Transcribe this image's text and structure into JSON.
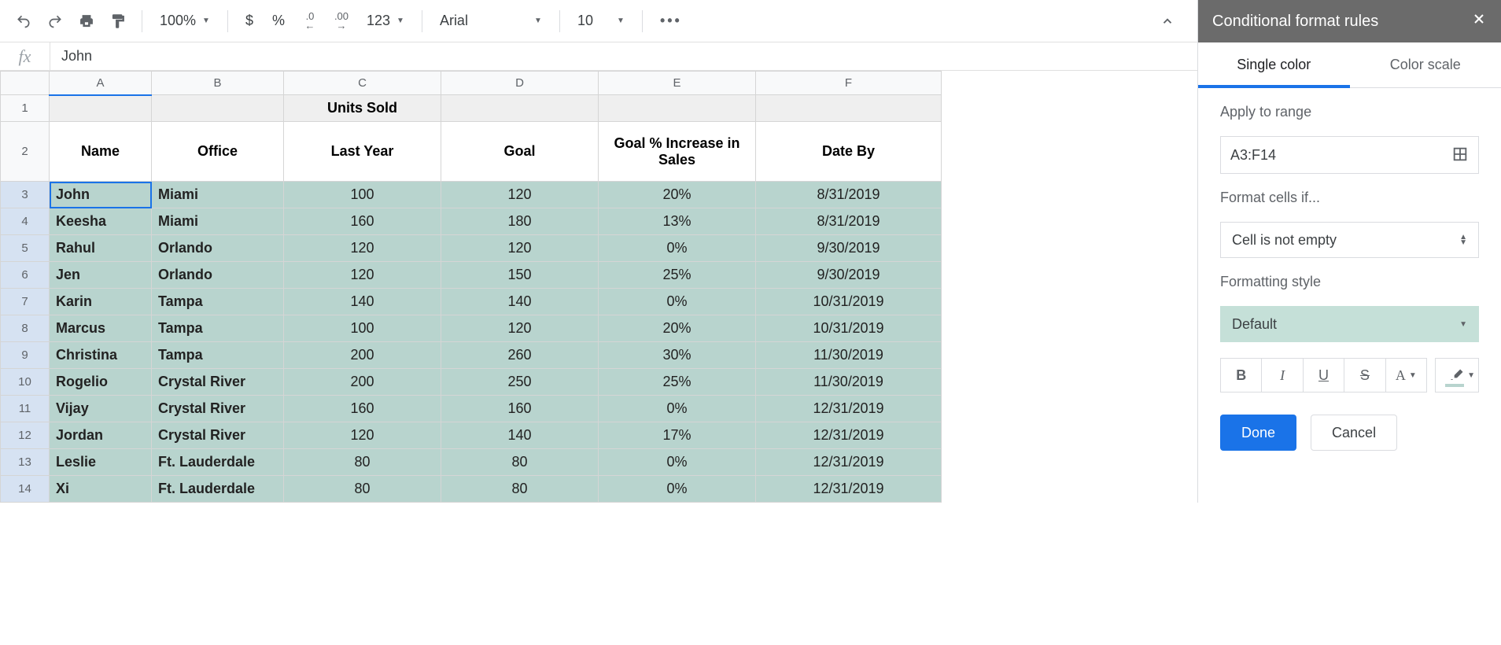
{
  "toolbar": {
    "zoom": "100%",
    "currency": "$",
    "percent": "%",
    "dec_less": ".0",
    "dec_more": ".00",
    "numfmt": "123",
    "font": "Arial",
    "fontsize": "10",
    "more": "•••"
  },
  "formula_bar": {
    "fx": "fx",
    "value": "John"
  },
  "columns": [
    "A",
    "B",
    "C",
    "D",
    "E",
    "F"
  ],
  "header_row1": [
    "",
    "",
    "Units Sold",
    "",
    "",
    ""
  ],
  "header_row2": [
    "Name",
    "Office",
    "Last Year",
    "Goal",
    "Goal % Increase in Sales",
    "Date By"
  ],
  "rows": [
    {
      "n": 3,
      "cells": [
        "John",
        "Miami",
        "100",
        "120",
        "20%",
        "8/31/2019"
      ]
    },
    {
      "n": 4,
      "cells": [
        "Keesha",
        "Miami",
        "160",
        "180",
        "13%",
        "8/31/2019"
      ]
    },
    {
      "n": 5,
      "cells": [
        "Rahul",
        "Orlando",
        "120",
        "120",
        "0%",
        "9/30/2019"
      ]
    },
    {
      "n": 6,
      "cells": [
        "Jen",
        "Orlando",
        "120",
        "150",
        "25%",
        "9/30/2019"
      ]
    },
    {
      "n": 7,
      "cells": [
        "Karin",
        "Tampa",
        "140",
        "140",
        "0%",
        "10/31/2019"
      ]
    },
    {
      "n": 8,
      "cells": [
        "Marcus",
        "Tampa",
        "100",
        "120",
        "20%",
        "10/31/2019"
      ]
    },
    {
      "n": 9,
      "cells": [
        "Christina",
        "Tampa",
        "200",
        "260",
        "30%",
        "11/30/2019"
      ]
    },
    {
      "n": 10,
      "cells": [
        "Rogelio",
        "Crystal River",
        "200",
        "250",
        "25%",
        "11/30/2019"
      ]
    },
    {
      "n": 11,
      "cells": [
        "Vijay",
        "Crystal River",
        "160",
        "160",
        "0%",
        "12/31/2019"
      ]
    },
    {
      "n": 12,
      "cells": [
        "Jordan",
        "Crystal River",
        "120",
        "140",
        "17%",
        "12/31/2019"
      ]
    },
    {
      "n": 13,
      "cells": [
        "Leslie",
        "Ft. Lauderdale",
        "80",
        "80",
        "0%",
        "12/31/2019"
      ]
    },
    {
      "n": 14,
      "cells": [
        "Xi",
        "Ft. Lauderdale",
        "80",
        "80",
        "0%",
        "12/31/2019"
      ]
    }
  ],
  "sidebar": {
    "title": "Conditional format rules",
    "tab_single": "Single color",
    "tab_scale": "Color scale",
    "range_label": "Apply to range",
    "range": "A3:F14",
    "condition_label": "Format cells if...",
    "condition": "Cell is not empty",
    "style_label": "Formatting style",
    "style_name": "Default",
    "bold": "B",
    "italic": "I",
    "underline": "U",
    "strike": "S",
    "textcolor": "A",
    "done": "Done",
    "cancel": "Cancel"
  },
  "colors": {
    "highlight": "#b8d4ce",
    "selection": "#1a73e8"
  }
}
